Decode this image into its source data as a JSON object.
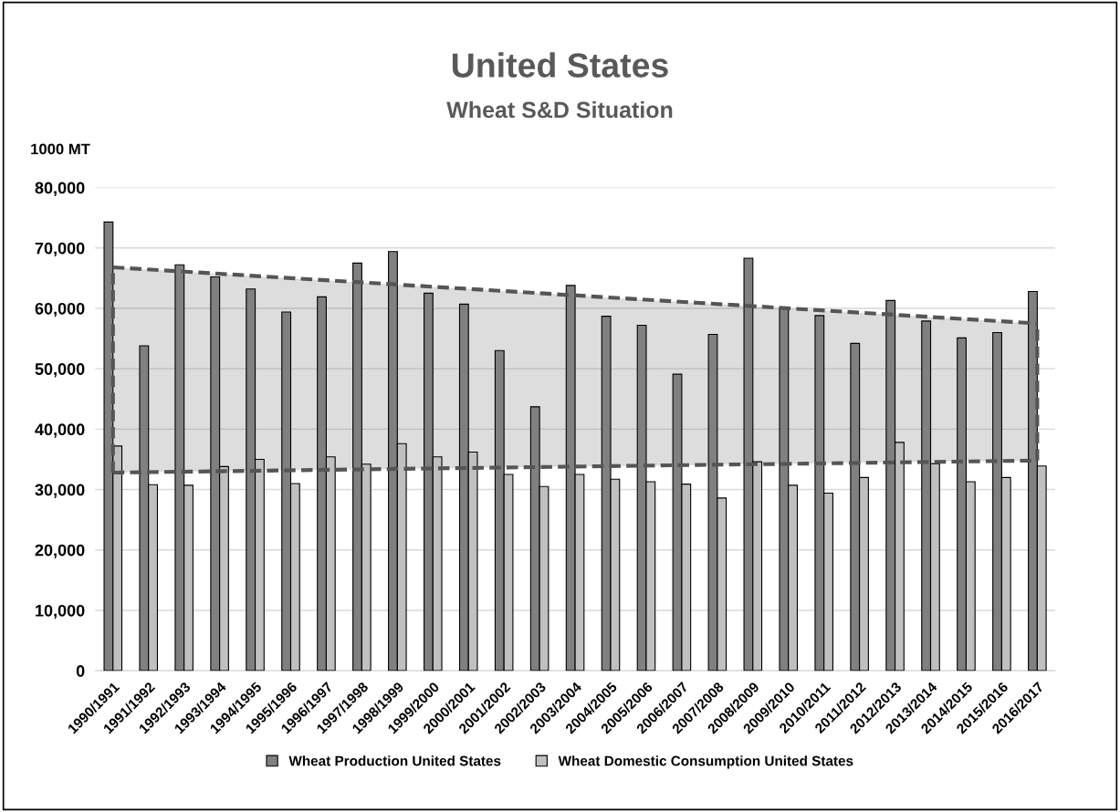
{
  "chart_data": {
    "type": "bar",
    "title": "United States",
    "subtitle": "Wheat S&D Situation",
    "ylabel": "1000 MT",
    "categories": [
      "1990/1991",
      "1991/1992",
      "1992/1993",
      "1993/1994",
      "1994/1995",
      "1995/1996",
      "1996/1997",
      "1997/1998",
      "1998/1999",
      "1999/2000",
      "2000/2001",
      "2001/2002",
      "2002/2003",
      "2003/2004",
      "2004/2005",
      "2005/2006",
      "2006/2007",
      "2007/2008",
      "2008/2009",
      "2009/2010",
      "2010/2011",
      "2011/2012",
      "2012/2013",
      "2013/2014",
      "2014/2015",
      "2015/2016",
      "2016/2017"
    ],
    "series": [
      {
        "name": "Wheat Production United States",
        "color": "#808080",
        "values": [
          74300,
          53800,
          67200,
          65200,
          63200,
          59400,
          61900,
          67500,
          69400,
          62500,
          60700,
          53000,
          43700,
          63800,
          58700,
          57200,
          49100,
          55700,
          68300,
          60100,
          58800,
          54200,
          61300,
          57900,
          55100,
          56000,
          62800
        ]
      },
      {
        "name": "Wheat Domestic Consumption United States",
        "color": "#c0c0c0",
        "values": [
          37200,
          30800,
          30700,
          33800,
          35000,
          31000,
          35400,
          34200,
          37600,
          35400,
          36200,
          32500,
          30500,
          32500,
          31700,
          31300,
          30900,
          28600,
          34600,
          30700,
          29400,
          32000,
          37800,
          34300,
          31300,
          32000,
          33900
        ]
      },
      {
        "type": "line",
        "color": "#555555",
        "line_style": "dashed",
        "x": [
          "1990/1991",
          "2016/2017"
        ],
        "values": [
          66800,
          57500
        ],
        "lower": [
          32800,
          34800
        ],
        "upper": [
          66800,
          57500
        ]
      },
      {
        "type": "line",
        "color": "#555555",
        "line_style": "dashed",
        "x": [
          "1990/1991",
          "2016/2017"
        ],
        "values": [
          32800,
          34800
        ]
      },
      {
        "type": "line",
        "color": "#555555",
        "line_style": "dashed",
        "x": [
          "1990/1991",
          "1990/1991"
        ],
        "values": [
          32800,
          66800
        ]
      },
      {
        "type": "line",
        "color": "#555555",
        "line_style": "dashed",
        "x": [
          "2016/2017",
          "2016/2017"
        ],
        "values": [
          34800,
          57500
        ]
      }
    ],
    "ylim": [
      0,
      80000
    ],
    "yticks": [
      {
        "value": 0,
        "label": "0"
      },
      {
        "value": 10000,
        "label": "10,000"
      },
      {
        "value": 20000,
        "label": "20,000"
      },
      {
        "value": 30000,
        "label": "30,000"
      },
      {
        "value": 40000,
        "label": "40,000"
      },
      {
        "value": 50000,
        "label": "50,000"
      },
      {
        "value": 60000,
        "label": "60,000"
      },
      {
        "value": 70000,
        "label": "70,000"
      },
      {
        "value": 80000,
        "label": "80,000"
      }
    ],
    "grid": "y",
    "legend": "bottom"
  }
}
